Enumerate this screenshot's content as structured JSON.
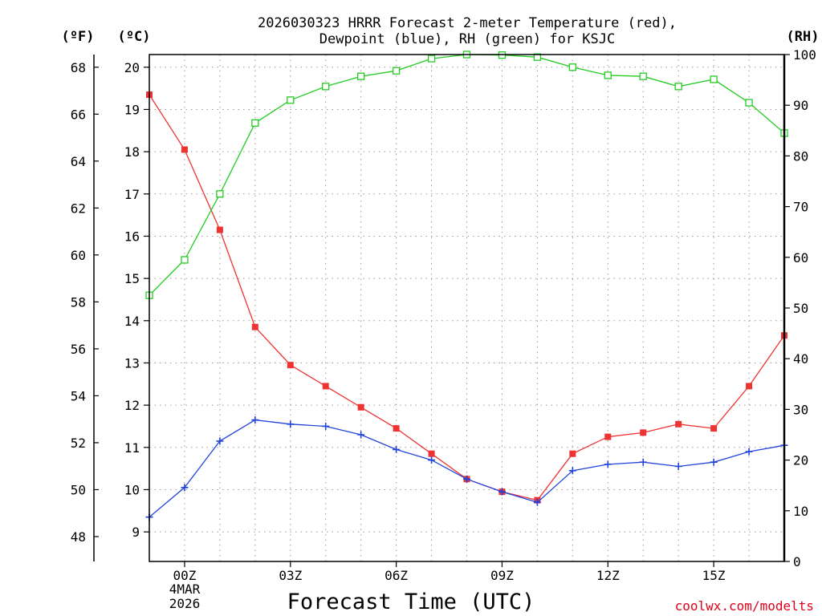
{
  "chart_data": {
    "type": "line",
    "title_lines": [
      "2026030323 HRRR Forecast 2-meter Temperature (red),",
      "Dewpoint (blue), RH (green) for KSJC"
    ],
    "xlabel": "Forecast Time (UTC)",
    "credit": "coolwx.com/modelts",
    "unit_labels": {
      "fahrenheit": "(ºF)",
      "celsius": "(ºC)",
      "rh": "(RH)"
    },
    "date_label_lines": [
      "4MAR",
      "2026"
    ],
    "x_range": [
      -1,
      17
    ],
    "x_ticks": [
      {
        "x": 0,
        "label": "00Z"
      },
      {
        "x": 3,
        "label": "03Z"
      },
      {
        "x": 6,
        "label": "06Z"
      },
      {
        "x": 9,
        "label": "09Z"
      },
      {
        "x": 12,
        "label": "12Z"
      },
      {
        "x": 15,
        "label": "15Z"
      }
    ],
    "celsius_range": [
      8.3,
      20.3
    ],
    "celsius_ticks": [
      "9",
      "10",
      "11",
      "12",
      "13",
      "14",
      "15",
      "16",
      "17",
      "18",
      "19",
      "20"
    ],
    "fahrenheit_ticks": [
      "48",
      "50",
      "52",
      "54",
      "56",
      "58",
      "60",
      "62",
      "64",
      "66",
      "68"
    ],
    "rh_range": [
      0,
      100
    ],
    "rh_ticks": [
      "0",
      "10",
      "20",
      "30",
      "40",
      "50",
      "60",
      "70",
      "80",
      "90",
      "100"
    ],
    "series": [
      {
        "name": "Temperature",
        "unit": "C",
        "color": "#ee3333",
        "marker": "filled-square",
        "x": [
          -1,
          0,
          1,
          2,
          3,
          4,
          5,
          6,
          7,
          8,
          9,
          10,
          11,
          12,
          13,
          14,
          15,
          16,
          17
        ],
        "values": [
          19.35,
          18.05,
          16.15,
          13.85,
          12.95,
          12.45,
          11.95,
          11.45,
          10.85,
          10.25,
          9.95,
          9.75,
          10.85,
          11.25,
          11.35,
          11.55,
          11.45,
          12.45,
          13.65
        ]
      },
      {
        "name": "Dewpoint",
        "unit": "C",
        "color": "#2244dd",
        "marker": "plus",
        "x": [
          -1,
          0,
          1,
          2,
          3,
          4,
          5,
          6,
          7,
          8,
          9,
          10,
          11,
          12,
          13,
          14,
          15,
          16,
          17
        ],
        "values": [
          9.35,
          10.05,
          11.15,
          11.65,
          11.55,
          11.5,
          11.3,
          10.95,
          10.7,
          10.25,
          9.95,
          9.7,
          10.45,
          10.6,
          10.65,
          10.55,
          10.65,
          10.9,
          11.05
        ]
      },
      {
        "name": "RH",
        "unit": "%",
        "color": "#22cc22",
        "marker": "open-square",
        "x": [
          -1,
          0,
          1,
          2,
          3,
          4,
          5,
          6,
          7,
          8,
          9,
          10,
          11,
          12,
          13,
          14,
          15,
          16,
          17
        ],
        "values": [
          52.5,
          59.5,
          72.5,
          86.5,
          91,
          93.7,
          95.7,
          96.8,
          99.2,
          100,
          99.9,
          99.5,
          97.5,
          95.9,
          95.7,
          93.7,
          95.1,
          90.5,
          84.5
        ]
      }
    ],
    "grid": true
  }
}
